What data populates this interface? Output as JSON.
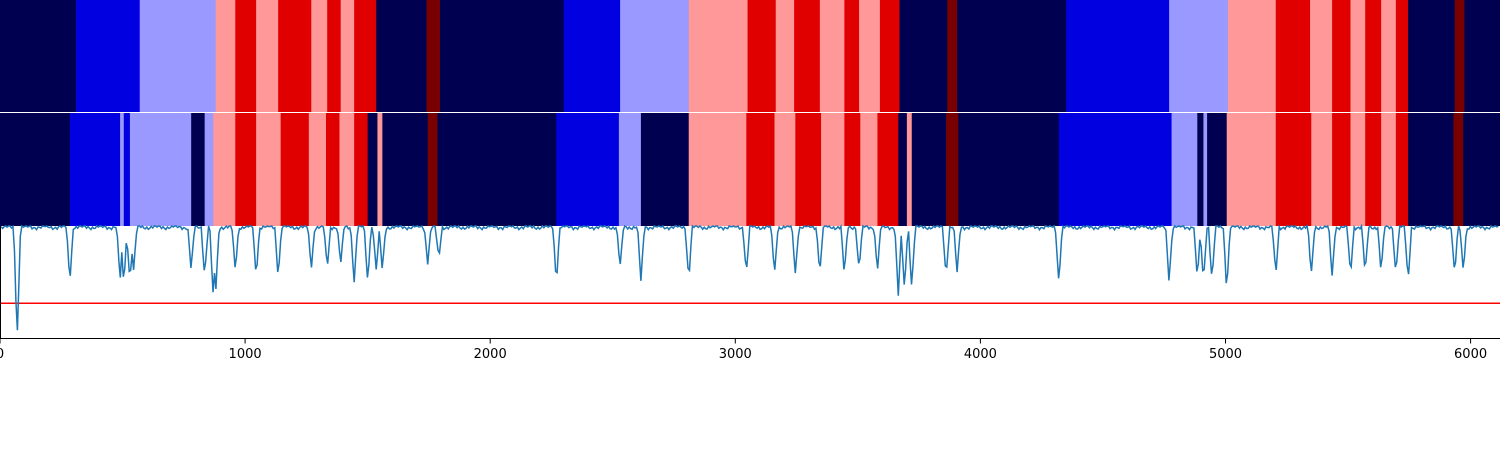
{
  "chart_data": [
    {
      "type": "heatmap",
      "title": "",
      "xlim": [
        0,
        6120
      ],
      "colors": {
        "0": "#000050",
        "1": "#0000e0",
        "2": "#9999ff",
        "3": "#ff9999",
        "4": "#e00000",
        "5": "#780000"
      },
      "segments": [
        [
          0,
          310,
          0
        ],
        [
          310,
          570,
          1
        ],
        [
          570,
          880,
          2
        ],
        [
          880,
          960,
          3
        ],
        [
          960,
          1045,
          4
        ],
        [
          1045,
          1135,
          3
        ],
        [
          1135,
          1270,
          4
        ],
        [
          1270,
          1335,
          3
        ],
        [
          1335,
          1390,
          4
        ],
        [
          1390,
          1445,
          3
        ],
        [
          1445,
          1535,
          4
        ],
        [
          1535,
          1740,
          0
        ],
        [
          1740,
          1795,
          5
        ],
        [
          1795,
          2300,
          0
        ],
        [
          2300,
          2530,
          1
        ],
        [
          2530,
          2810,
          2
        ],
        [
          2810,
          3050,
          3
        ],
        [
          3050,
          3165,
          4
        ],
        [
          3165,
          3240,
          3
        ],
        [
          3240,
          3345,
          4
        ],
        [
          3345,
          3445,
          3
        ],
        [
          3445,
          3505,
          4
        ],
        [
          3505,
          3590,
          3
        ],
        [
          3590,
          3670,
          4
        ],
        [
          3670,
          3865,
          0
        ],
        [
          3865,
          3905,
          5
        ],
        [
          3905,
          4350,
          0
        ],
        [
          4350,
          4770,
          1
        ],
        [
          4770,
          5010,
          2
        ],
        [
          5010,
          5205,
          3
        ],
        [
          5205,
          5345,
          4
        ],
        [
          5345,
          5435,
          3
        ],
        [
          5435,
          5510,
          4
        ],
        [
          5510,
          5570,
          3
        ],
        [
          5570,
          5635,
          4
        ],
        [
          5635,
          5695,
          3
        ],
        [
          5695,
          5745,
          4
        ],
        [
          5745,
          5935,
          0
        ],
        [
          5935,
          5975,
          5
        ],
        [
          5975,
          6120,
          0
        ]
      ]
    },
    {
      "type": "heatmap",
      "title": "",
      "xlim": [
        0,
        6120
      ],
      "colors": {
        "0": "#000050",
        "1": "#0000e0",
        "2": "#9999ff",
        "3": "#ff9999",
        "4": "#e00000",
        "5": "#780000"
      },
      "segments": [
        [
          0,
          285,
          0
        ],
        [
          285,
          490,
          1
        ],
        [
          490,
          505,
          2
        ],
        [
          505,
          530,
          1
        ],
        [
          530,
          545,
          2
        ],
        [
          545,
          780,
          2
        ],
        [
          780,
          835,
          0
        ],
        [
          835,
          870,
          2
        ],
        [
          870,
          960,
          3
        ],
        [
          960,
          1045,
          4
        ],
        [
          1045,
          1145,
          3
        ],
        [
          1145,
          1260,
          4
        ],
        [
          1260,
          1330,
          3
        ],
        [
          1330,
          1385,
          4
        ],
        [
          1385,
          1445,
          3
        ],
        [
          1445,
          1500,
          4
        ],
        [
          1500,
          1540,
          0
        ],
        [
          1540,
          1560,
          3
        ],
        [
          1560,
          1745,
          0
        ],
        [
          1745,
          1785,
          5
        ],
        [
          1785,
          2270,
          0
        ],
        [
          2270,
          2525,
          1
        ],
        [
          2525,
          2615,
          2
        ],
        [
          2615,
          2810,
          0
        ],
        [
          2810,
          3045,
          3
        ],
        [
          3045,
          3160,
          4
        ],
        [
          3160,
          3245,
          3
        ],
        [
          3245,
          3350,
          4
        ],
        [
          3350,
          3445,
          3
        ],
        [
          3445,
          3510,
          4
        ],
        [
          3510,
          3580,
          3
        ],
        [
          3580,
          3665,
          4
        ],
        [
          3665,
          3700,
          0
        ],
        [
          3700,
          3720,
          3
        ],
        [
          3720,
          3860,
          0
        ],
        [
          3860,
          3910,
          5
        ],
        [
          3910,
          4320,
          0
        ],
        [
          4320,
          4780,
          1
        ],
        [
          4780,
          4885,
          2
        ],
        [
          4885,
          4910,
          0
        ],
        [
          4910,
          4925,
          2
        ],
        [
          4925,
          4945,
          0
        ],
        [
          4945,
          5005,
          0
        ],
        [
          5005,
          5205,
          3
        ],
        [
          5205,
          5350,
          4
        ],
        [
          5350,
          5435,
          3
        ],
        [
          5435,
          5510,
          4
        ],
        [
          5510,
          5570,
          3
        ],
        [
          5570,
          5635,
          4
        ],
        [
          5635,
          5695,
          3
        ],
        [
          5695,
          5745,
          4
        ],
        [
          5745,
          5930,
          0
        ],
        [
          5930,
          5970,
          5
        ],
        [
          5970,
          6120,
          0
        ]
      ]
    },
    {
      "type": "line",
      "title": "",
      "xlabel": "",
      "ylabel": "",
      "xlim": [
        0,
        6120
      ],
      "ylim": [
        0,
        1
      ],
      "xticks": [
        0,
        1000,
        2000,
        3000,
        4000,
        5000,
        6000
      ],
      "xtick_labels": [
        "0",
        "1000",
        "2000",
        "3000",
        "4000",
        "5000",
        "6000"
      ],
      "threshold": 0.31,
      "threshold_color": "#ff0000",
      "series_color": "#1f77b4",
      "baseline": 0.99,
      "dips": [
        [
          70,
          0.0
        ],
        [
          285,
          0.5
        ],
        [
          490,
          0.5
        ],
        [
          505,
          0.48
        ],
        [
          530,
          0.5
        ],
        [
          545,
          0.6
        ],
        [
          780,
          0.6
        ],
        [
          835,
          0.55
        ],
        [
          870,
          0.34
        ],
        [
          880,
          0.4
        ],
        [
          960,
          0.6
        ],
        [
          1045,
          0.55
        ],
        [
          1135,
          0.55
        ],
        [
          1270,
          0.62
        ],
        [
          1335,
          0.62
        ],
        [
          1390,
          0.65
        ],
        [
          1445,
          0.5
        ],
        [
          1500,
          0.5
        ],
        [
          1535,
          0.6
        ],
        [
          1560,
          0.6
        ],
        [
          1745,
          0.68
        ],
        [
          1790,
          0.7
        ],
        [
          2270,
          0.5
        ],
        [
          2530,
          0.62
        ],
        [
          2615,
          0.5
        ],
        [
          2810,
          0.52
        ],
        [
          3045,
          0.57
        ],
        [
          3160,
          0.57
        ],
        [
          3245,
          0.58
        ],
        [
          3345,
          0.58
        ],
        [
          3445,
          0.55
        ],
        [
          3505,
          0.6
        ],
        [
          3580,
          0.6
        ],
        [
          3665,
          0.38
        ],
        [
          3690,
          0.42
        ],
        [
          3720,
          0.45
        ],
        [
          3860,
          0.55
        ],
        [
          3905,
          0.58
        ],
        [
          4320,
          0.5
        ],
        [
          4770,
          0.5
        ],
        [
          4885,
          0.52
        ],
        [
          4910,
          0.5
        ],
        [
          4945,
          0.5
        ],
        [
          5005,
          0.43
        ],
        [
          5205,
          0.55
        ],
        [
          5350,
          0.55
        ],
        [
          5435,
          0.55
        ],
        [
          5510,
          0.55
        ],
        [
          5570,
          0.56
        ],
        [
          5635,
          0.58
        ],
        [
          5695,
          0.57
        ],
        [
          5745,
          0.5
        ],
        [
          5935,
          0.56
        ],
        [
          5970,
          0.6
        ]
      ]
    }
  ]
}
